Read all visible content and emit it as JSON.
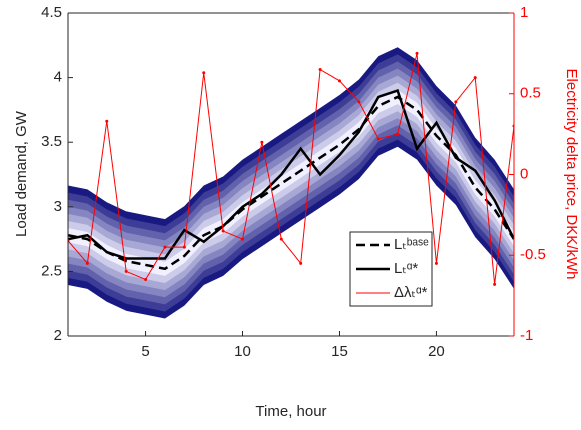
{
  "chart_data": {
    "type": "line",
    "x": [
      1,
      2,
      3,
      4,
      5,
      6,
      7,
      8,
      9,
      10,
      11,
      12,
      13,
      14,
      15,
      16,
      17,
      18,
      19,
      20,
      21,
      22,
      23,
      24
    ],
    "xlim": [
      1,
      24
    ],
    "xticks": [
      5,
      10,
      15,
      20
    ],
    "ylim": [
      2,
      4.5
    ],
    "yticks": [
      2,
      2.5,
      3,
      3.5,
      4,
      4.5
    ],
    "y2lim": [
      -1,
      1
    ],
    "y2ticks": [
      -1,
      -0.5,
      0,
      0.5,
      1
    ],
    "xlabel": "Time, hour",
    "ylabel": "Load demand, GW",
    "y2label": "Electricity delta price, DKK/kWh",
    "legend": "center-right",
    "series": [
      {
        "name": "Lₜᵇᵃˢᵉ",
        "color": "#000000",
        "style": "dashed",
        "values": [
          2.78,
          2.75,
          2.65,
          2.58,
          2.55,
          2.52,
          2.62,
          2.78,
          2.85,
          2.98,
          3.08,
          3.18,
          3.28,
          3.38,
          3.48,
          3.6,
          3.78,
          3.85,
          3.75,
          3.55,
          3.4,
          3.15,
          2.98,
          2.75
        ]
      },
      {
        "name": "Lₜᵅ*",
        "color": "#000000",
        "style": "solid",
        "values": [
          2.75,
          2.78,
          2.65,
          2.6,
          2.6,
          2.6,
          2.82,
          2.73,
          2.85,
          3.0,
          3.1,
          3.25,
          3.45,
          3.25,
          3.4,
          3.58,
          3.85,
          3.9,
          3.45,
          3.65,
          3.38,
          3.28,
          3.05,
          2.75
        ]
      },
      {
        "name": "Δλₜᵅ*",
        "color": "#ff0000",
        "style": "solid",
        "axis": "y2",
        "values": [
          -0.41,
          -0.55,
          0.33,
          -0.6,
          -0.65,
          -0.45,
          -0.45,
          0.63,
          -0.35,
          -0.4,
          0.2,
          -0.4,
          -0.55,
          0.65,
          0.58,
          0.45,
          0.22,
          0.25,
          0.75,
          -0.55,
          0.45,
          0.6,
          -0.68,
          0.3
        ]
      }
    ]
  }
}
